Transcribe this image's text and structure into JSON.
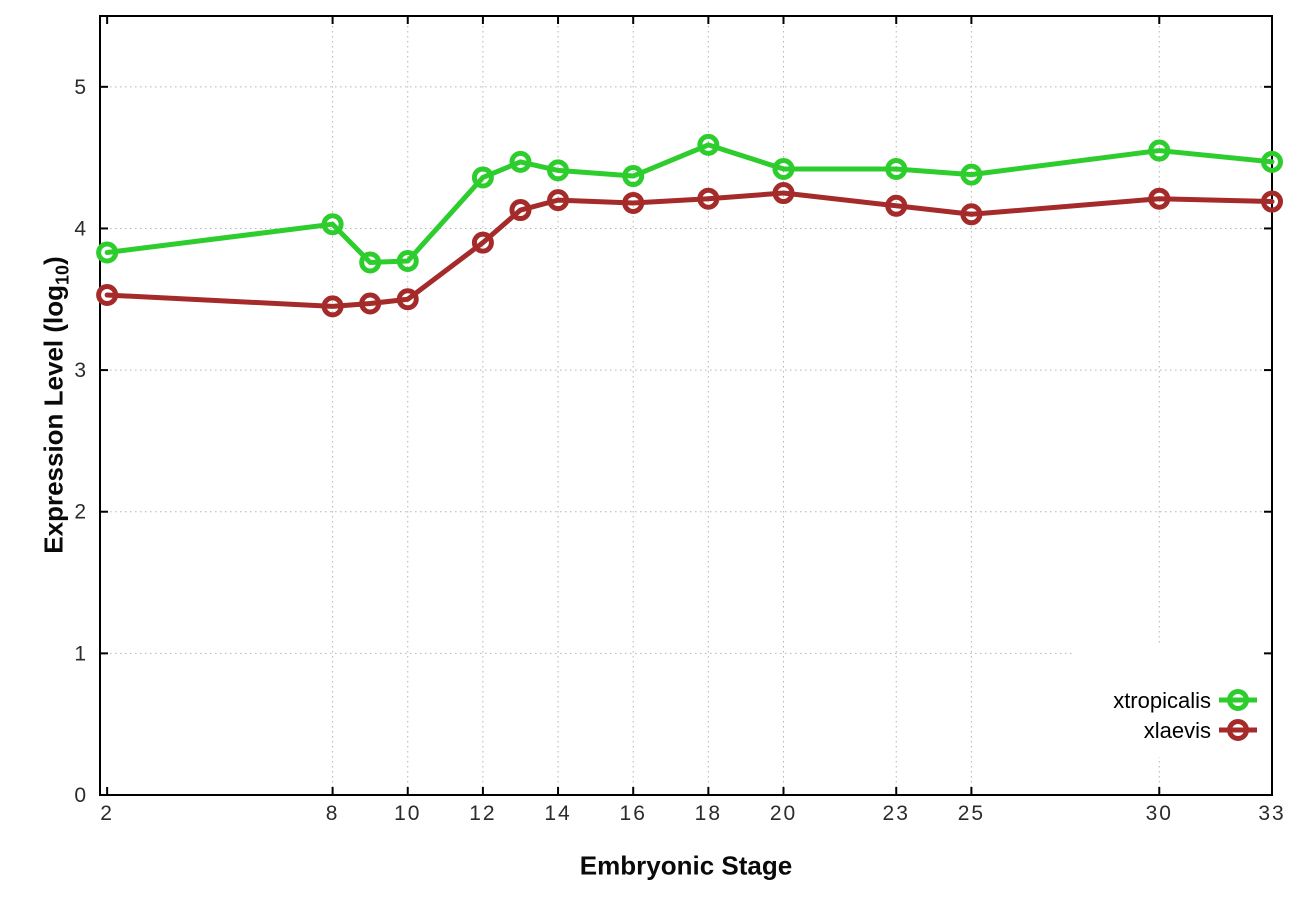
{
  "page": {
    "background": "#ffffff"
  },
  "axes": {
    "xlabel": "Embryonic Stage",
    "ylabel_prefix": "Expression Level (log",
    "ylabel_sub": "10",
    "ylabel_suffix": ")"
  },
  "chart_data": {
    "type": "line",
    "title": "",
    "xlabel": "Embryonic Stage",
    "ylabel": "Expression Level (log10)",
    "x": [
      2,
      8,
      9,
      10,
      12,
      13,
      14,
      16,
      18,
      20,
      23,
      25,
      30,
      33
    ],
    "xticks": [
      2,
      8,
      10,
      12,
      14,
      16,
      18,
      20,
      23,
      25,
      30,
      33
    ],
    "yticks": [
      0,
      1,
      2,
      3,
      4,
      5
    ],
    "xlim": [
      1.81,
      33
    ],
    "ylim": [
      0,
      5.5
    ],
    "grid": true,
    "grid_style": "dotted",
    "legend_position": "inside right",
    "legend_opaque": true,
    "marker": "open-circle",
    "series": [
      {
        "name": "xtropicalis",
        "color": "#2ecd2e",
        "marker": "open-circle",
        "values": [
          3.83,
          4.03,
          3.76,
          3.77,
          4.36,
          4.47,
          4.41,
          4.37,
          4.59,
          4.42,
          4.42,
          4.38,
          4.55,
          4.47
        ]
      },
      {
        "name": "xlaevis",
        "color": "#a52a2a",
        "marker": "open-circle",
        "values": [
          3.53,
          3.45,
          3.47,
          3.5,
          3.9,
          4.13,
          4.2,
          4.18,
          4.21,
          4.25,
          4.16,
          4.1,
          4.21,
          4.19
        ]
      }
    ]
  }
}
